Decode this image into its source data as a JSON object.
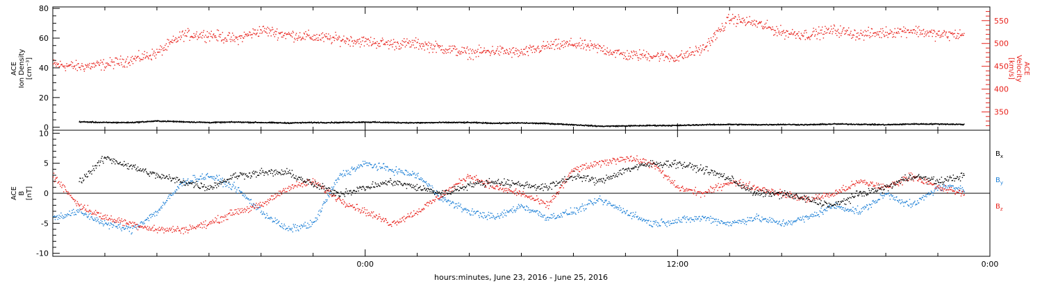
{
  "chart_data": [
    {
      "type": "scatter",
      "panel": "top",
      "ylabel_left": [
        "ACE",
        "Ion Density",
        "[cm⁻³]"
      ],
      "ylabel_right": [
        "ACE",
        "Velocity",
        "[km/s]"
      ],
      "y_left_range": [
        -2,
        81
      ],
      "y_left_ticks": [
        0,
        20,
        40,
        60,
        80
      ],
      "y_right_range": [
        310,
        580
      ],
      "y_right_ticks": [
        350,
        400,
        450,
        500,
        550
      ],
      "x_range_hours": [
        -24,
        48
      ],
      "series": [
        {
          "color": "#000000",
          "axis": "left",
          "values": [
            [
              -22,
              4
            ],
            [
              -20,
              3.5
            ],
            [
              -18,
              3.5
            ],
            [
              -16,
              4.5
            ],
            [
              -14,
              4
            ],
            [
              -12,
              3.5
            ],
            [
              -10,
              3.8
            ],
            [
              -8,
              3.5
            ],
            [
              -6,
              3.2
            ],
            [
              -4,
              3.5
            ],
            [
              -2,
              3.5
            ],
            [
              0,
              3.8
            ],
            [
              2,
              3.5
            ],
            [
              4,
              3.3
            ],
            [
              6,
              3.5
            ],
            [
              8,
              3.5
            ],
            [
              10,
              3
            ],
            [
              12,
              3.2
            ],
            [
              14,
              2.8
            ],
            [
              16,
              2
            ],
            [
              18,
              1
            ],
            [
              20,
              1.2
            ],
            [
              22,
              1.5
            ],
            [
              24,
              1.5
            ],
            [
              26,
              2
            ],
            [
              28,
              2.2
            ],
            [
              30,
              2
            ],
            [
              32,
              2.2
            ],
            [
              34,
              2
            ],
            [
              36,
              2.5
            ],
            [
              38,
              2.3
            ],
            [
              40,
              2
            ],
            [
              42,
              2.5
            ],
            [
              44,
              2.5
            ],
            [
              46,
              2.2
            ]
          ]
        },
        {
          "color": "#e8201a",
          "axis": "right",
          "values": [
            [
              -24,
              455
            ],
            [
              -22,
              450
            ],
            [
              -20,
              455
            ],
            [
              -18,
              465
            ],
            [
              -16,
              480
            ],
            [
              -14,
              520
            ],
            [
              -12,
              520
            ],
            [
              -10,
              510
            ],
            [
              -8,
              530
            ],
            [
              -6,
              520
            ],
            [
              -4,
              515
            ],
            [
              -2,
              510
            ],
            [
              0,
              505
            ],
            [
              2,
              500
            ],
            [
              4,
              500
            ],
            [
              6,
              490
            ],
            [
              8,
              480
            ],
            [
              10,
              485
            ],
            [
              12,
              480
            ],
            [
              14,
              495
            ],
            [
              16,
              500
            ],
            [
              18,
              490
            ],
            [
              20,
              475
            ],
            [
              22,
              475
            ],
            [
              24,
              470
            ],
            [
              26,
              490
            ],
            [
              28,
              555
            ],
            [
              30,
              545
            ],
            [
              32,
              525
            ],
            [
              34,
              520
            ],
            [
              36,
              530
            ],
            [
              38,
              520
            ],
            [
              40,
              525
            ],
            [
              42,
              530
            ],
            [
              44,
              520
            ],
            [
              46,
              520
            ]
          ]
        }
      ]
    },
    {
      "type": "scatter",
      "panel": "bottom",
      "ylabel": [
        "ACE",
        "B",
        "[nT]"
      ],
      "y_range": [
        -10.5,
        10.5
      ],
      "y_ticks": [
        -10,
        -5,
        0,
        5,
        10
      ],
      "x_range_hours": [
        -24,
        48
      ],
      "zero_line": true,
      "legend_position": "right",
      "series": [
        {
          "name": "Bx",
          "color": "#000000",
          "values": [
            [
              -22,
              2
            ],
            [
              -20,
              6
            ],
            [
              -18,
              4.5
            ],
            [
              -16,
              3
            ],
            [
              -14,
              2
            ],
            [
              -12,
              1
            ],
            [
              -10,
              3
            ],
            [
              -8,
              3.5
            ],
            [
              -6,
              3.5
            ],
            [
              -4,
              1.5
            ],
            [
              -2,
              0
            ],
            [
              0,
              1
            ],
            [
              2,
              2
            ],
            [
              4,
              1
            ],
            [
              6,
              0
            ],
            [
              8,
              1.5
            ],
            [
              10,
              2
            ],
            [
              12,
              1.5
            ],
            [
              14,
              1
            ],
            [
              16,
              3
            ],
            [
              18,
              2
            ],
            [
              20,
              4
            ],
            [
              22,
              5
            ],
            [
              24,
              5
            ],
            [
              26,
              4
            ],
            [
              28,
              2.5
            ],
            [
              30,
              0
            ],
            [
              32,
              0
            ],
            [
              34,
              -1
            ],
            [
              36,
              -2
            ],
            [
              38,
              0
            ],
            [
              40,
              1
            ],
            [
              42,
              3
            ],
            [
              44,
              2
            ],
            [
              46,
              3
            ]
          ]
        },
        {
          "name": "By",
          "color": "#1a7ed6",
          "values": [
            [
              -24,
              -4
            ],
            [
              -22,
              -3
            ],
            [
              -20,
              -5
            ],
            [
              -18,
              -6
            ],
            [
              -16,
              -3
            ],
            [
              -14,
              2
            ],
            [
              -12,
              3
            ],
            [
              -10,
              1
            ],
            [
              -8,
              -3
            ],
            [
              -6,
              -6
            ],
            [
              -4,
              -5
            ],
            [
              -2,
              3
            ],
            [
              0,
              5
            ],
            [
              2,
              4
            ],
            [
              4,
              3
            ],
            [
              6,
              -1
            ],
            [
              8,
              -3
            ],
            [
              10,
              -4
            ],
            [
              12,
              -2
            ],
            [
              14,
              -4
            ],
            [
              16,
              -3
            ],
            [
              18,
              -1
            ],
            [
              20,
              -3
            ],
            [
              22,
              -5
            ],
            [
              24,
              -4.5
            ],
            [
              26,
              -4
            ],
            [
              28,
              -5
            ],
            [
              30,
              -4
            ],
            [
              32,
              -5
            ],
            [
              34,
              -4
            ],
            [
              36,
              -2
            ],
            [
              38,
              -3
            ],
            [
              40,
              0
            ],
            [
              42,
              -2
            ],
            [
              44,
              1
            ],
            [
              46,
              1
            ]
          ]
        },
        {
          "name": "Bz",
          "color": "#e8201a",
          "values": [
            [
              -24,
              3
            ],
            [
              -22,
              -2
            ],
            [
              -20,
              -4
            ],
            [
              -18,
              -5
            ],
            [
              -16,
              -6
            ],
            [
              -14,
              -6
            ],
            [
              -12,
              -5
            ],
            [
              -10,
              -3
            ],
            [
              -8,
              -2
            ],
            [
              -6,
              1
            ],
            [
              -4,
              2
            ],
            [
              -2,
              -1
            ],
            [
              0,
              -3
            ],
            [
              2,
              -5
            ],
            [
              4,
              -3
            ],
            [
              6,
              0
            ],
            [
              8,
              3
            ],
            [
              10,
              1
            ],
            [
              12,
              0
            ],
            [
              14,
              -2
            ],
            [
              16,
              4
            ],
            [
              18,
              5
            ],
            [
              20,
              6
            ],
            [
              22,
              5
            ],
            [
              24,
              1
            ],
            [
              26,
              0
            ],
            [
              28,
              2
            ],
            [
              30,
              1
            ],
            [
              32,
              0
            ],
            [
              34,
              -1
            ],
            [
              36,
              0
            ],
            [
              38,
              2
            ],
            [
              40,
              1
            ],
            [
              42,
              3
            ],
            [
              44,
              1
            ],
            [
              46,
              0
            ]
          ]
        }
      ],
      "legend": [
        {
          "label": "Bx",
          "main": "B",
          "sub": "x",
          "color": "#000000"
        },
        {
          "label": "By",
          "main": "B",
          "sub": "y",
          "color": "#1a7ed6"
        },
        {
          "label": "Bz",
          "main": "B",
          "sub": "z",
          "color": "#e8201a"
        }
      ]
    }
  ],
  "x_axis": {
    "ticks": [
      {
        "hours": 0,
        "label": "0:00"
      },
      {
        "hours": 24,
        "label": "12:00"
      },
      {
        "hours": 48,
        "label": "0:00"
      }
    ],
    "minor_step_hours": 4,
    "xlabel": "hours:minutes, June 23, 2016 - June 25, 2016"
  },
  "colors": {
    "black": "#000000",
    "red": "#e8201a",
    "blue": "#1a7ed6"
  }
}
